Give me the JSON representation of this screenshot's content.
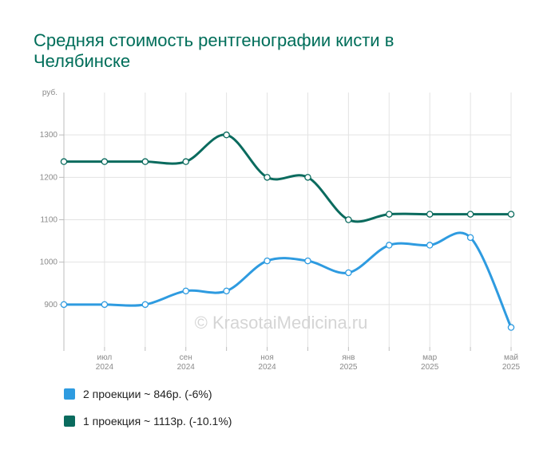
{
  "title": "Средняя стоимость рентгенографии кисти в Челябинске",
  "watermark": "© KrasotaiMedicina.ru",
  "chart_data": {
    "type": "line",
    "y_unit": "руб.",
    "ylim": [
      800,
      1400
    ],
    "yticks": [
      900,
      1000,
      1100,
      1200,
      1300
    ],
    "x_ticks": [
      {
        "month": "июл",
        "year": "2024",
        "i": 1
      },
      {
        "month": "сен",
        "year": "2024",
        "i": 3
      },
      {
        "month": "ноя",
        "year": "2024",
        "i": 5
      },
      {
        "month": "янв",
        "year": "2025",
        "i": 7
      },
      {
        "month": "мар",
        "year": "2025",
        "i": 9
      },
      {
        "month": "май",
        "year": "2025",
        "i": 11
      }
    ],
    "categories": [
      "2024-06",
      "2024-07",
      "2024-08",
      "2024-09",
      "2024-10",
      "2024-11",
      "2024-12",
      "2025-01",
      "2025-02",
      "2025-03",
      "2025-04",
      "2025-05"
    ],
    "grid": true,
    "legend_position": "bottom",
    "series": [
      {
        "name": "2 проекции ~ 846р. (-6%)",
        "color": "#2e9be0",
        "values": [
          900,
          900,
          900,
          932,
          932,
          1003,
          1003,
          975,
          1040,
          1040,
          1058,
          846
        ]
      },
      {
        "name": "1 проекция ~ 1113р. (-10.1%)",
        "color": "#0a6b5e",
        "values": [
          1237,
          1237,
          1237,
          1237,
          1300,
          1200,
          1200,
          1100,
          1113,
          1113,
          1113,
          1113
        ]
      }
    ]
  }
}
